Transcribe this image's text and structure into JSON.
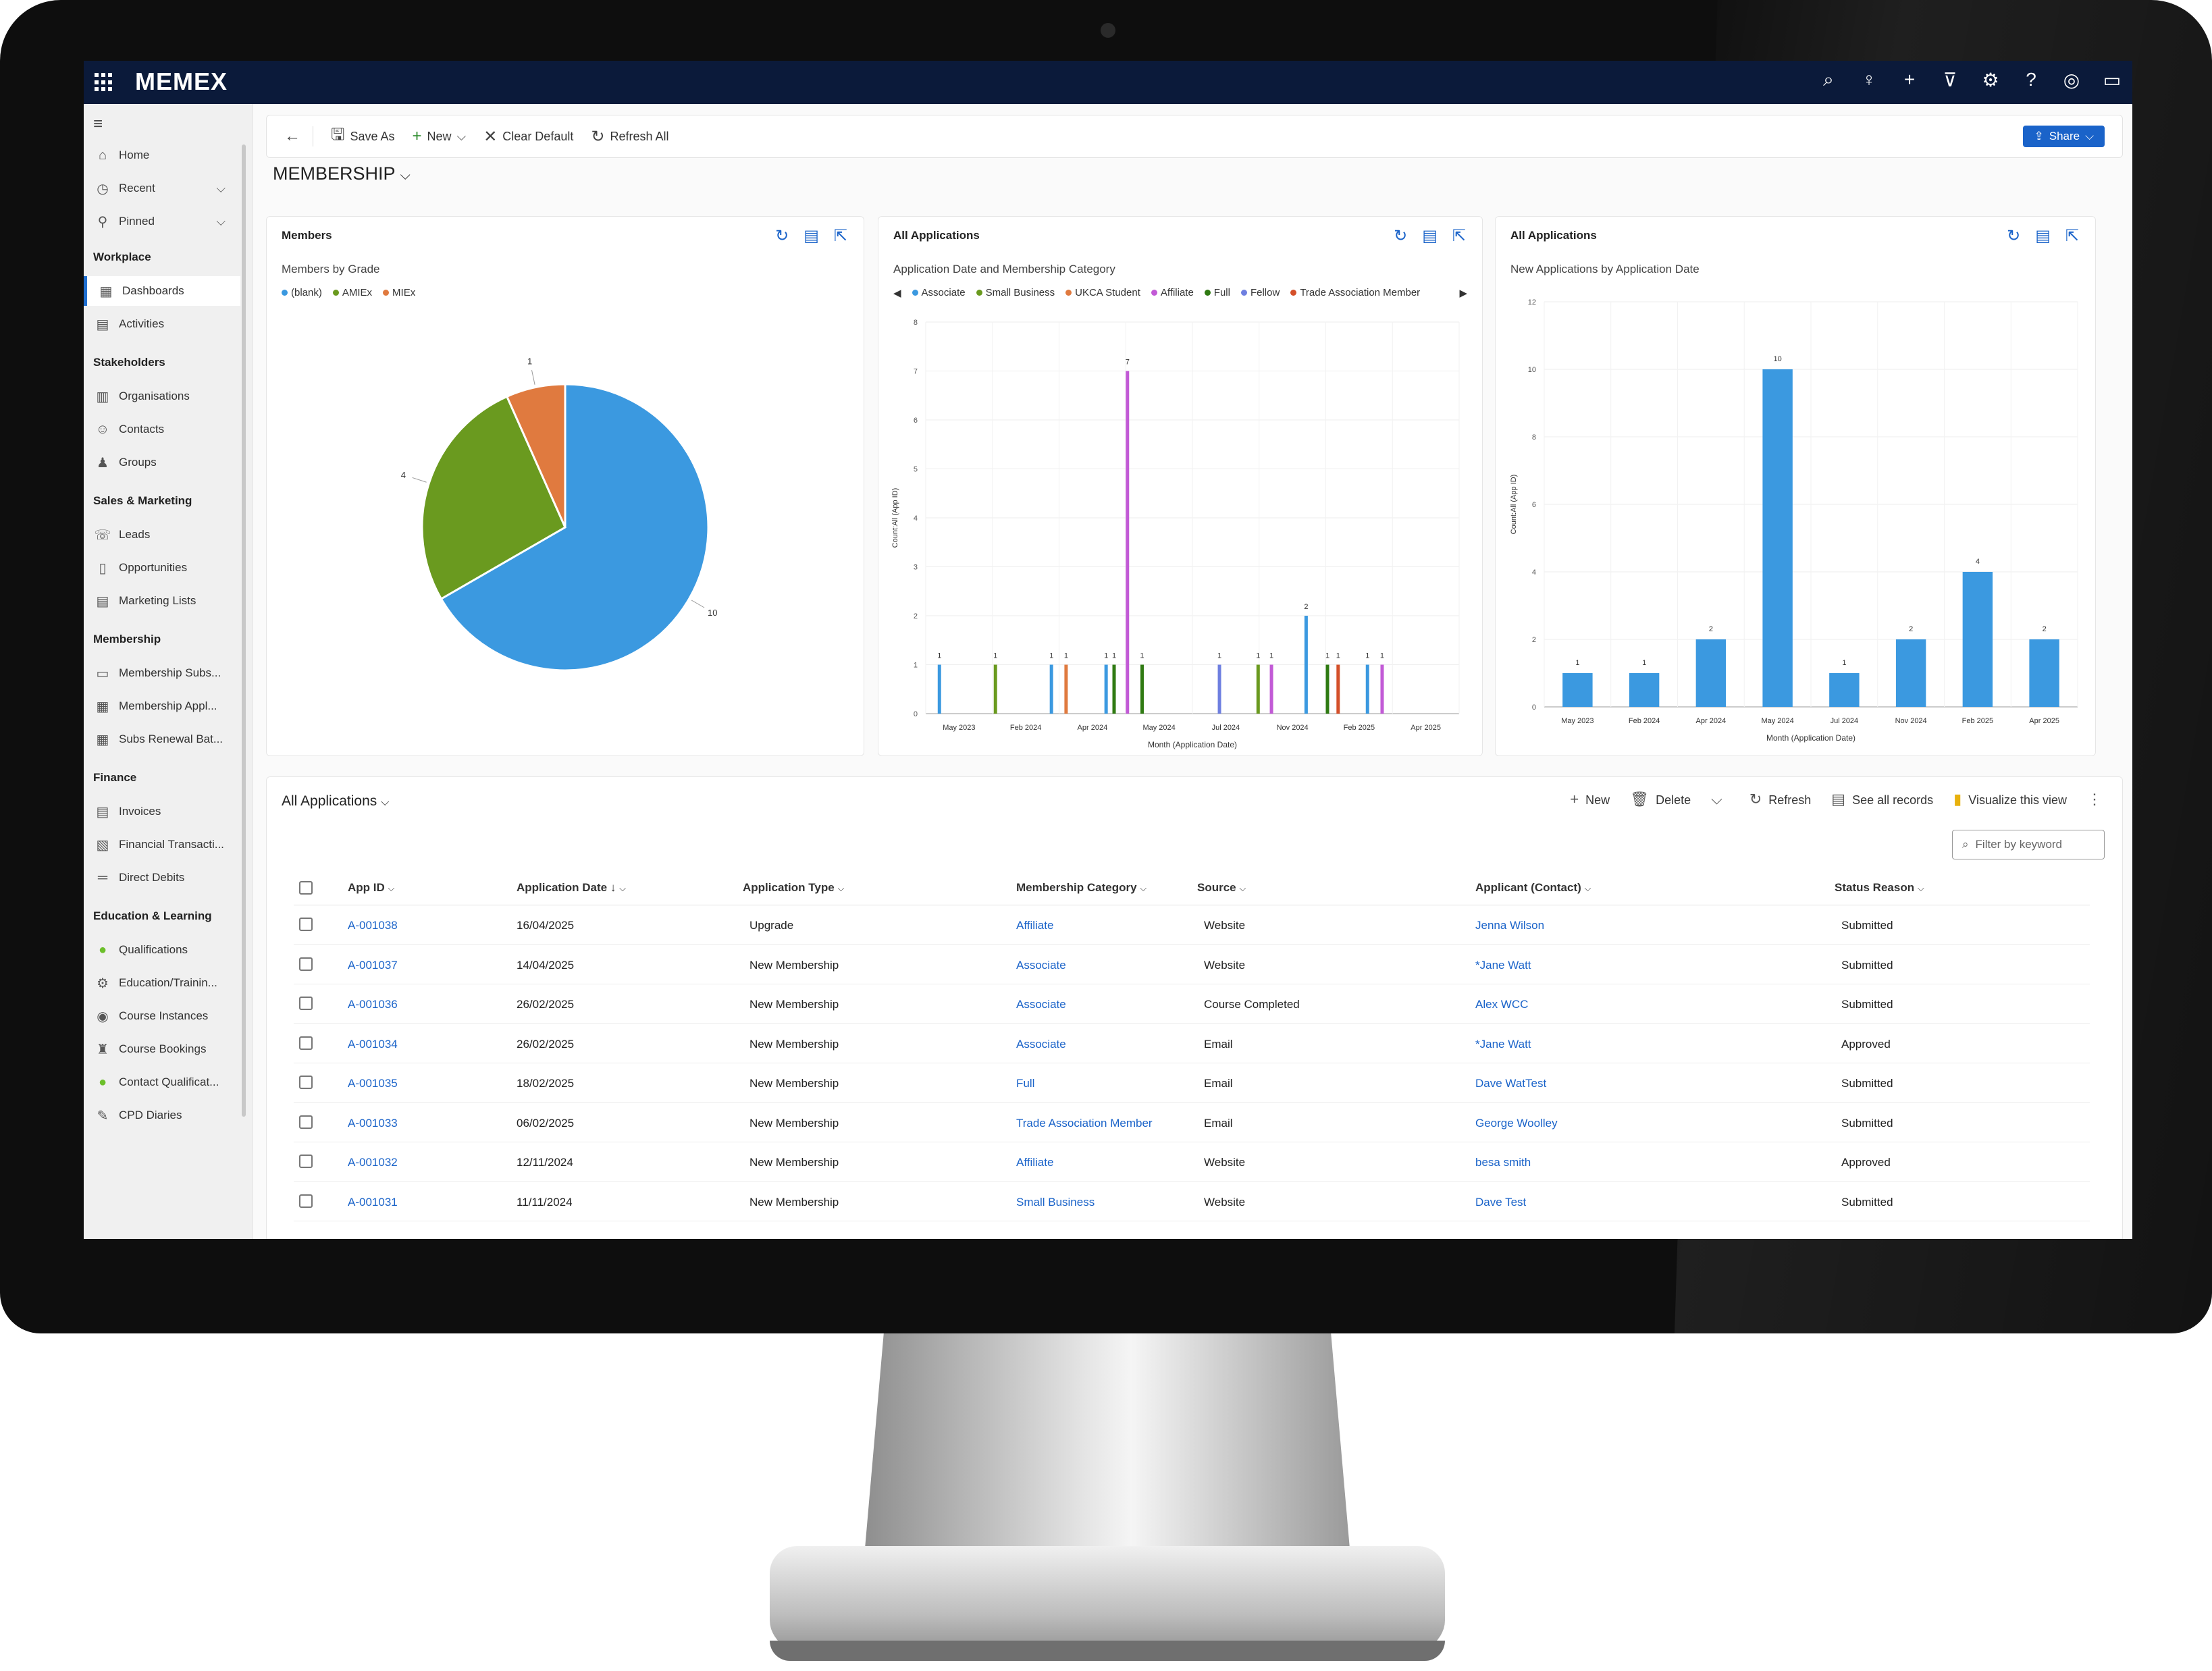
{
  "app": {
    "brand": "MEMEX"
  },
  "topbar_icons": [
    "search-icon",
    "lightbulb-icon",
    "plus-icon",
    "filter-icon",
    "settings-icon",
    "help-icon",
    "copilot-icon",
    "chat-icon"
  ],
  "sidebar": {
    "items_top": [
      {
        "label": "Home",
        "icon": "home-icon"
      },
      {
        "label": "Recent",
        "icon": "clock-icon"
      },
      {
        "label": "Pinned",
        "icon": "pin-icon"
      }
    ],
    "groups": [
      {
        "heading": "Workplace",
        "items": [
          {
            "label": "Dashboards",
            "icon": "dashboard-icon",
            "active": true
          },
          {
            "label": "Activities",
            "icon": "activities-icon"
          }
        ]
      },
      {
        "heading": "Stakeholders",
        "items": [
          {
            "label": "Organisations",
            "icon": "organisation-icon"
          },
          {
            "label": "Contacts",
            "icon": "contact-icon"
          },
          {
            "label": "Groups",
            "icon": "groups-icon"
          }
        ]
      },
      {
        "heading": "Sales & Marketing",
        "items": [
          {
            "label": "Leads",
            "icon": "leads-icon"
          },
          {
            "label": "Opportunities",
            "icon": "opportunity-icon"
          },
          {
            "label": "Marketing Lists",
            "icon": "list-icon"
          }
        ]
      },
      {
        "heading": "Membership",
        "items": [
          {
            "label": "Membership Subs...",
            "icon": "subscription-icon"
          },
          {
            "label": "Membership Appl...",
            "icon": "application-icon"
          },
          {
            "label": "Subs Renewal Bat...",
            "icon": "renewal-icon"
          }
        ]
      },
      {
        "heading": "Finance",
        "items": [
          {
            "label": "Invoices",
            "icon": "invoice-icon"
          },
          {
            "label": "Financial Transacti...",
            "icon": "transaction-icon"
          },
          {
            "label": "Direct Debits",
            "icon": "direct-debit-icon"
          }
        ]
      },
      {
        "heading": "Education & Learning",
        "items": [
          {
            "label": "Qualifications",
            "icon": "qualification-icon"
          },
          {
            "label": "Education/Trainin...",
            "icon": "education-icon"
          },
          {
            "label": "Course Instances",
            "icon": "course-instance-icon"
          },
          {
            "label": "Course Bookings",
            "icon": "course-booking-icon"
          },
          {
            "label": "Contact Qualificat...",
            "icon": "contact-qualification-icon"
          },
          {
            "label": "CPD Diaries",
            "icon": "diary-icon"
          }
        ]
      }
    ]
  },
  "commandbar": {
    "save_as": "Save As",
    "new": "New",
    "clear_default": "Clear Default",
    "refresh_all": "Refresh All",
    "share": "Share"
  },
  "dashboard": {
    "title": "MEMBERSHIP"
  },
  "cards": [
    {
      "title": "Members",
      "subtitle": "Members by Grade"
    },
    {
      "title": "All Applications",
      "subtitle": "Application Date and Membership Category"
    },
    {
      "title": "All Applications",
      "subtitle": "New Applications by Application Date"
    }
  ],
  "chart_data": [
    {
      "type": "pie",
      "title": "Members by Grade",
      "categories": [
        "(blank)",
        "AMIEx",
        "MIEx"
      ],
      "values": [
        10,
        4,
        1
      ],
      "colors": [
        "#3b99e0",
        "#6a9a1f",
        "#e07a3f"
      ]
    },
    {
      "type": "bar",
      "title": "Application Date and Membership Category",
      "xlabel": "Month (Application Date)",
      "ylabel": "Count:All (App ID)",
      "ylim": [
        0,
        8
      ],
      "yticks": [
        "0",
        "1",
        "2",
        "3",
        "4",
        "5",
        "6",
        "7",
        "8"
      ],
      "categories": [
        "May 2023",
        "Feb 2024",
        "Apr 2024",
        "May 2024",
        "Jul 2024",
        "Nov 2024",
        "Feb 2025",
        "Apr 2025"
      ],
      "series": [
        {
          "name": "Associate",
          "color": "#3b99e0"
        },
        {
          "name": "Small Business",
          "color": "#6a9a1f"
        },
        {
          "name": "UKCA Student",
          "color": "#e07a3f"
        },
        {
          "name": "Affiliate",
          "color": "#c25ad6"
        },
        {
          "name": "Full",
          "color": "#2f7a12"
        },
        {
          "name": "Fellow",
          "color": "#6e7fe0"
        },
        {
          "name": "Trade Association Member",
          "color": "#d4502a"
        }
      ],
      "bars": [
        {
          "x": 0.1,
          "v": 1,
          "s": 0
        },
        {
          "x": 0.94,
          "v": 1,
          "s": 1
        },
        {
          "x": 1.78,
          "v": 1,
          "s": 0
        },
        {
          "x": 2.0,
          "v": 1,
          "s": 2
        },
        {
          "x": 2.6,
          "v": 1,
          "s": 0
        },
        {
          "x": 2.72,
          "v": 1,
          "s": 4
        },
        {
          "x": 2.92,
          "v": 7,
          "s": 3
        },
        {
          "x": 3.14,
          "v": 1,
          "s": 4
        },
        {
          "x": 4.3,
          "v": 1,
          "s": 5
        },
        {
          "x": 4.88,
          "v": 1,
          "s": 1
        },
        {
          "x": 5.08,
          "v": 1,
          "s": 3
        },
        {
          "x": 5.6,
          "v": 2,
          "s": 0
        },
        {
          "x": 5.92,
          "v": 1,
          "s": 4
        },
        {
          "x": 6.08,
          "v": 1,
          "s": 6
        },
        {
          "x": 6.52,
          "v": 1,
          "s": 0
        },
        {
          "x": 6.74,
          "v": 1,
          "s": 3
        }
      ]
    },
    {
      "type": "bar",
      "title": "New Applications by Application Date",
      "xlabel": "Month (Application Date)",
      "ylabel": "Count:All (App ID)",
      "ylim": [
        0,
        12
      ],
      "yticks": [
        "0",
        "2",
        "4",
        "6",
        "8",
        "10",
        "12"
      ],
      "categories": [
        "May 2023",
        "Feb 2024",
        "Apr 2024",
        "May 2024",
        "Jul 2024",
        "Nov 2024",
        "Feb 2025",
        "Apr 2025"
      ],
      "values": [
        1,
        1,
        2,
        10,
        1,
        2,
        4,
        2
      ],
      "color": "#3b99e0"
    }
  ],
  "grid": {
    "title": "All Applications",
    "cmds": {
      "new": "New",
      "delete": "Delete",
      "refresh": "Refresh",
      "see_all": "See all records",
      "visualize": "Visualize this view"
    },
    "filter_placeholder": "Filter by keyword",
    "columns": [
      "App ID",
      "Application  Date",
      "Application Type",
      "Membership Category",
      "Source",
      "Applicant (Contact)",
      "Status Reason"
    ],
    "rows": [
      {
        "id": "A-001038",
        "date": "16/04/2025",
        "type": "Upgrade",
        "category": "Affiliate",
        "source": "Website",
        "applicant": "Jenna Wilson",
        "status": "Submitted"
      },
      {
        "id": "A-001037",
        "date": "14/04/2025",
        "type": "New Membership",
        "category": "Associate",
        "source": "Website",
        "applicant": "*Jane Watt",
        "status": "Submitted"
      },
      {
        "id": "A-001036",
        "date": "26/02/2025",
        "type": "New Membership",
        "category": "Associate",
        "source": "Course Completed",
        "applicant": "Alex WCC",
        "status": "Submitted"
      },
      {
        "id": "A-001034",
        "date": "26/02/2025",
        "type": "New Membership",
        "category": "Associate",
        "source": "Email",
        "applicant": "*Jane Watt",
        "status": "Approved"
      },
      {
        "id": "A-001035",
        "date": "18/02/2025",
        "type": "New Membership",
        "category": "Full",
        "source": "Email",
        "applicant": "Dave WatTest",
        "status": "Submitted"
      },
      {
        "id": "A-001033",
        "date": "06/02/2025",
        "type": "New Membership",
        "category": "Trade Association Member",
        "source": "Email",
        "applicant": "George Woolley",
        "status": "Submitted"
      },
      {
        "id": "A-001032",
        "date": "12/11/2024",
        "type": "New Membership",
        "category": "Affiliate",
        "source": "Website",
        "applicant": "besa smith",
        "status": "Approved"
      },
      {
        "id": "A-001031",
        "date": "11/11/2024",
        "type": "New Membership",
        "category": "Small Business",
        "source": "Website",
        "applicant": "Dave Test",
        "status": "Submitted"
      }
    ]
  }
}
